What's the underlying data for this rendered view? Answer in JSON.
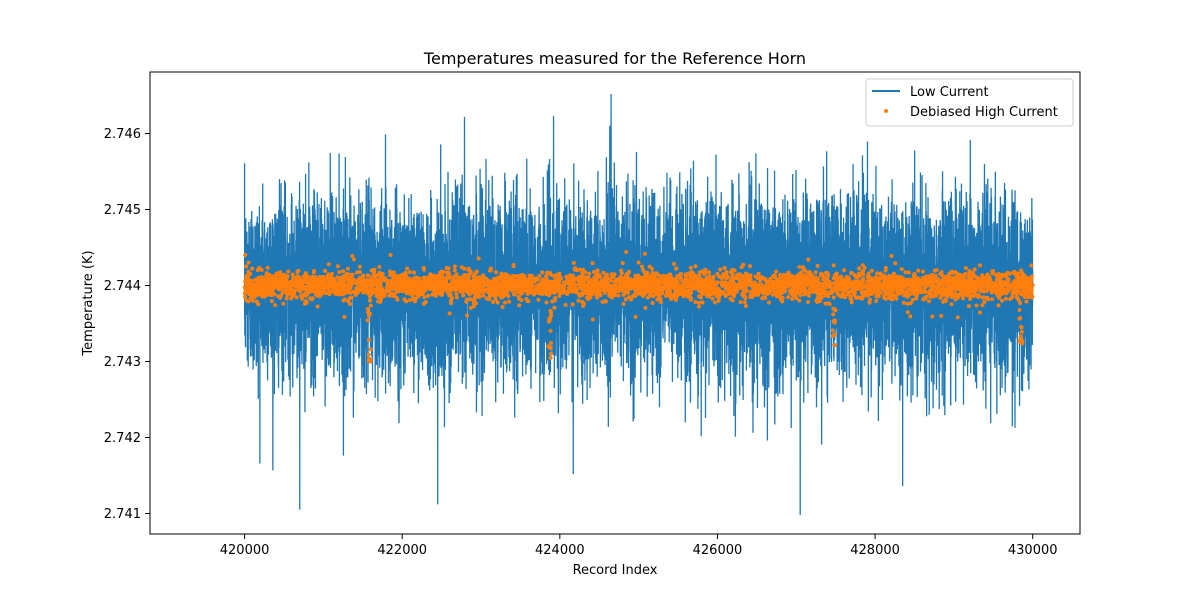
{
  "chart_data": {
    "type": "line",
    "title": "Temperatures measured for the Reference Horn",
    "xlabel": "Record Index",
    "ylabel": "Temperature (K)",
    "xlim": [
      418800,
      430600
    ],
    "ylim": [
      2.74073,
      2.74681
    ],
    "xticks": [
      420000,
      422000,
      424000,
      426000,
      428000,
      430000
    ],
    "xtick_labels": [
      "420000",
      "422000",
      "424000",
      "426000",
      "428000",
      "430000"
    ],
    "yticks": [
      2.741,
      2.742,
      2.743,
      2.744,
      2.745,
      2.746
    ],
    "ytick_labels": [
      "2.741",
      "2.742",
      "2.743",
      "2.744",
      "2.745",
      "2.746"
    ],
    "grid": false,
    "legend_position": "upper right",
    "series": [
      {
        "name": "Low Current",
        "kind": "line",
        "color": "#1f77b4",
        "x_range": [
          420000,
          430000
        ],
        "n_points": 10000,
        "mean": 2.744,
        "typical_range": [
          2.7428,
          2.7455
        ],
        "min": 2.741,
        "max": 2.74652,
        "extremes": [
          {
            "x": 424650,
            "y": 2.74652
          },
          {
            "x": 423920,
            "y": 2.74623
          },
          {
            "x": 422790,
            "y": 2.74622
          },
          {
            "x": 420700,
            "y": 2.74105
          },
          {
            "x": 422450,
            "y": 2.74112
          },
          {
            "x": 427050,
            "y": 2.74098
          },
          {
            "x": 424170,
            "y": 2.74152
          },
          {
            "x": 428350,
            "y": 2.74136
          }
        ]
      },
      {
        "name": "Debiased High Current",
        "kind": "scatter",
        "color": "#ff7f0e",
        "x_range": [
          420000,
          430000
        ],
        "n_points": 10000,
        "mean": 2.744,
        "typical_range": [
          2.7438,
          2.7442
        ],
        "outlier_clusters": [
          {
            "x": 421580,
            "y_range": [
              2.7429,
              2.7437
            ]
          },
          {
            "x": 423870,
            "y_range": [
              2.743,
              2.7437
            ]
          },
          {
            "x": 427480,
            "y_range": [
              2.7432,
              2.7437
            ]
          },
          {
            "x": 429850,
            "y_range": [
              2.7432,
              2.7437
            ]
          }
        ]
      }
    ]
  }
}
